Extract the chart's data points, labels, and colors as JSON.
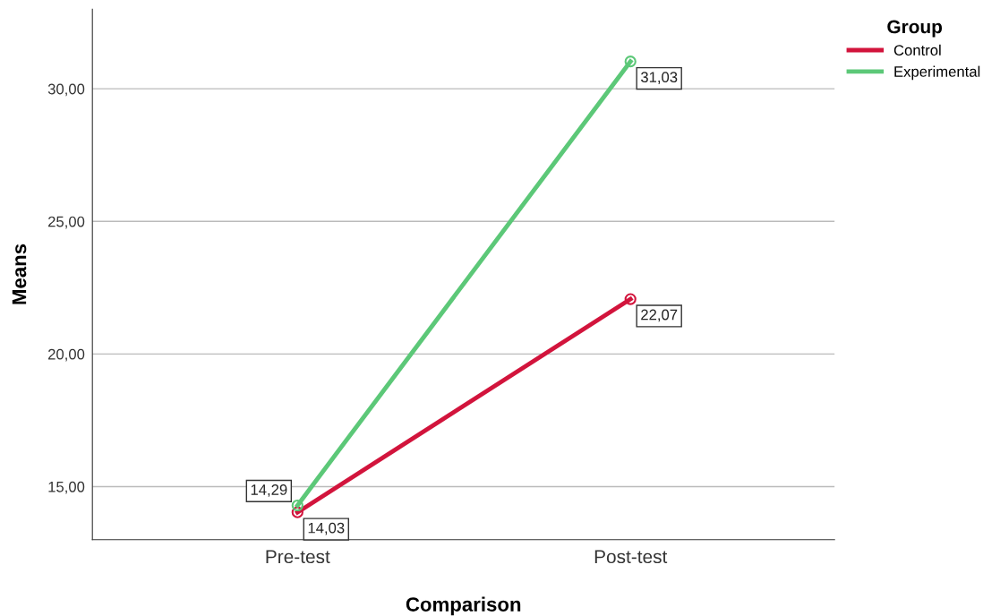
{
  "chart_data": {
    "type": "line",
    "xlabel": "Comparison",
    "ylabel": "Means",
    "legend_title": "Group",
    "categories": [
      "Pre-test",
      "Post-test"
    ],
    "series": [
      {
        "name": "Control",
        "color": "#d2143c",
        "values": [
          14.03,
          22.07
        ],
        "value_labels": [
          "14,03",
          "22,07"
        ]
      },
      {
        "name": "Experimental",
        "color": "#5cc878",
        "values": [
          14.29,
          31.03
        ],
        "value_labels": [
          "14,29",
          "31,03"
        ]
      }
    ],
    "ylim": [
      13,
      33
    ],
    "yticks": [
      {
        "value": 15,
        "label": "15,00"
      },
      {
        "value": 20,
        "label": "20,00"
      },
      {
        "value": 25,
        "label": "25,00"
      },
      {
        "value": 30,
        "label": "30,00"
      }
    ],
    "grid": "y",
    "legend": "top right",
    "marker": "circle",
    "line_style": "solid"
  }
}
